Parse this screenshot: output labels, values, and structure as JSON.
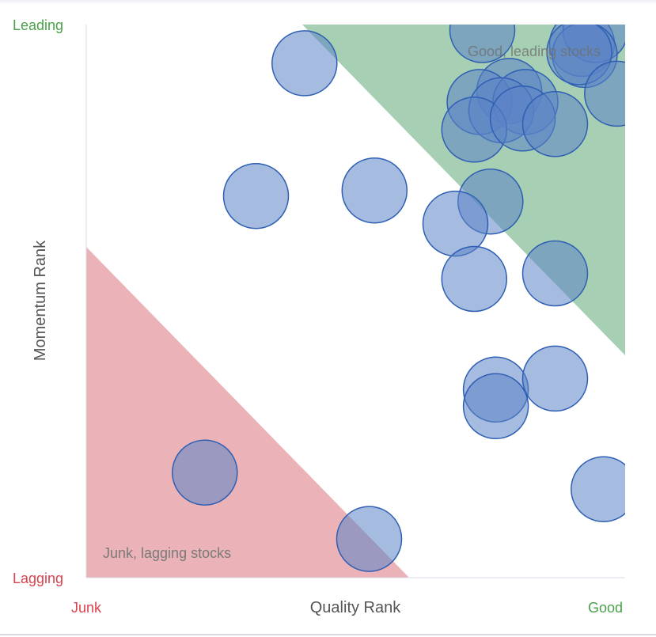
{
  "chart_data": {
    "type": "scatter",
    "xlabel": "Quality Rank",
    "ylabel": "Momentum Rank",
    "x_tick_labels": {
      "low": "Junk",
      "high": "Good"
    },
    "y_tick_labels": {
      "low": "Lagging",
      "high": "Leading"
    },
    "xlim": [
      0,
      100
    ],
    "ylim": [
      0,
      100
    ],
    "annotations": {
      "leading": "Good, leading stocks",
      "lagging": "Junk, lagging stocks"
    },
    "colors": {
      "point_fill": "#5b83c7",
      "point_stroke": "#2f5fb3",
      "leading_zone": "#a6cfb4",
      "lagging_zone": "#ebb3b8",
      "junk_label": "#d9424f",
      "good_label": "#4aa14a",
      "axis_title": "#555555"
    },
    "points": [
      {
        "x": 40.5,
        "y": 93.0
      },
      {
        "x": 73.5,
        "y": 99.0
      },
      {
        "x": 92.0,
        "y": 96.5
      },
      {
        "x": 94.5,
        "y": 99.0
      },
      {
        "x": 92.5,
        "y": 94.5
      },
      {
        "x": 91.5,
        "y": 95.0
      },
      {
        "x": 98.5,
        "y": 87.5
      },
      {
        "x": 78.5,
        "y": 88.0
      },
      {
        "x": 73.0,
        "y": 86.0
      },
      {
        "x": 81.5,
        "y": 86.0
      },
      {
        "x": 77.0,
        "y": 84.5
      },
      {
        "x": 72.0,
        "y": 81.0
      },
      {
        "x": 81.0,
        "y": 83.0
      },
      {
        "x": 87.0,
        "y": 82.0
      },
      {
        "x": 31.5,
        "y": 69.0
      },
      {
        "x": 53.5,
        "y": 70.0
      },
      {
        "x": 75.0,
        "y": 68.0
      },
      {
        "x": 68.5,
        "y": 64.0
      },
      {
        "x": 72.0,
        "y": 54.0
      },
      {
        "x": 87.0,
        "y": 55.0
      },
      {
        "x": 76.0,
        "y": 34.0
      },
      {
        "x": 87.0,
        "y": 36.0
      },
      {
        "x": 76.0,
        "y": 31.0
      },
      {
        "x": 96.0,
        "y": 16.0
      },
      {
        "x": 22.0,
        "y": 19.0
      },
      {
        "x": 52.5,
        "y": 7.0
      }
    ]
  }
}
